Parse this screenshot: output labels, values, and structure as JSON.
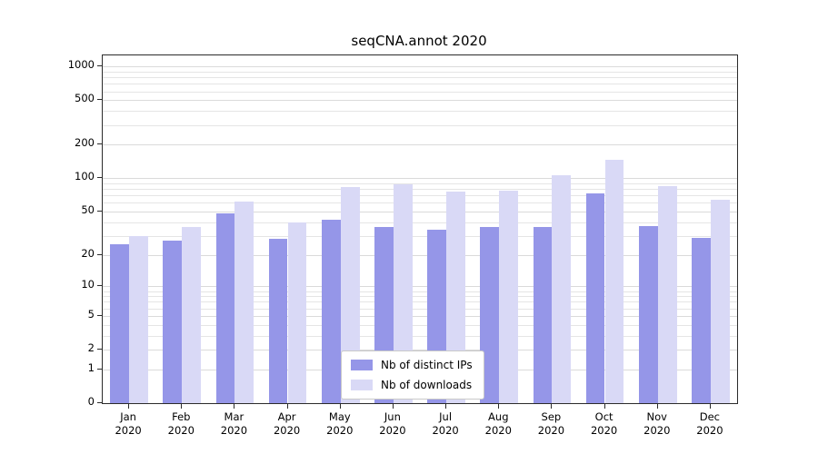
{
  "title": "seqCNA.annot 2020",
  "chart_data": {
    "type": "bar",
    "title": "seqCNA.annot 2020",
    "categories": [
      "Jan",
      "Feb",
      "Mar",
      "Apr",
      "May",
      "Jun",
      "Jul",
      "Aug",
      "Sep",
      "Oct",
      "Nov",
      "Dec"
    ],
    "year": "2020",
    "series": [
      {
        "name": "Nb of distinct IPs",
        "color": "#9596e8",
        "values": [
          25,
          27,
          48,
          28,
          42,
          36,
          34,
          36,
          36,
          73,
          37,
          29
        ]
      },
      {
        "name": "Nb of downloads",
        "color": "#d9d9f6",
        "values": [
          30,
          36,
          62,
          40,
          83,
          88,
          76,
          77,
          107,
          148,
          85,
          64
        ]
      }
    ],
    "xlabel": "",
    "ylabel": "",
    "yticks": [
      0,
      1,
      2,
      5,
      10,
      20,
      50,
      100,
      200,
      500,
      1000
    ],
    "ylim": [
      0,
      1000
    ],
    "yscale": "log10(value+1)",
    "grid": "horizontal log minor gridlines",
    "legend_position": "lower center, inside plot"
  }
}
